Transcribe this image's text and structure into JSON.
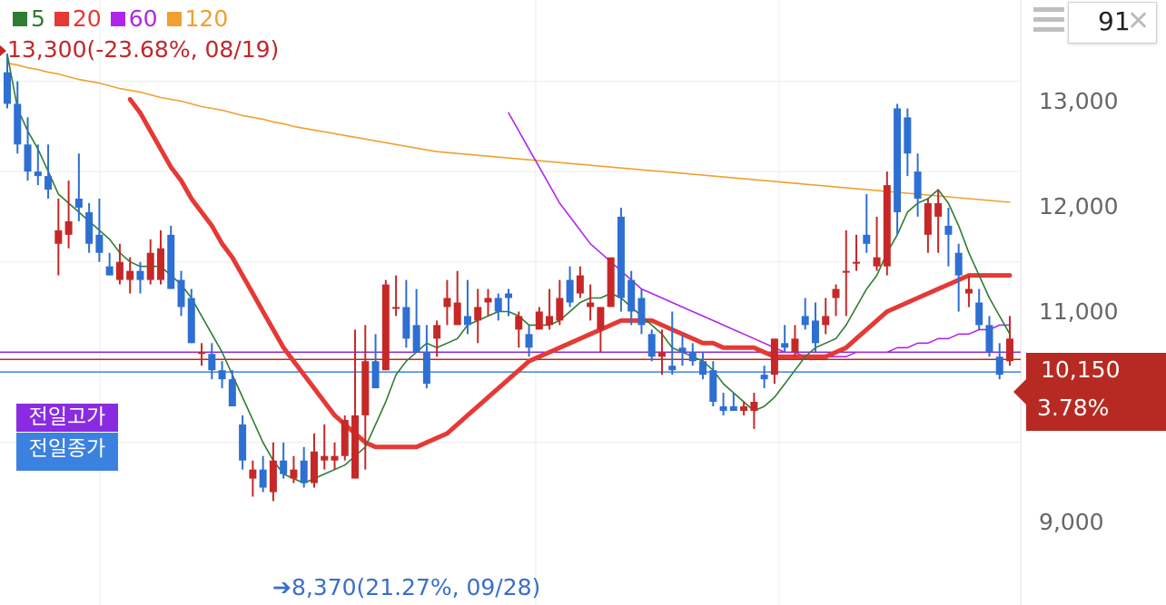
{
  "chart_data": {
    "type": "candlestick",
    "legend": [
      {
        "label": "5",
        "color": "#2e7d32"
      },
      {
        "label": "20",
        "color": "#e53935"
      },
      {
        "label": "60",
        "color": "#b026e8"
      },
      {
        "label": "120",
        "color": "#f0a030"
      }
    ],
    "yticks": [
      "13,000",
      "12,000",
      "11,000",
      "9,000"
    ],
    "ytick_values": [
      13000,
      12000,
      11000,
      9000
    ],
    "ylim": [
      7200,
      13900
    ],
    "grid": true,
    "high_marker": "13,300(-23.68%, 08/19)",
    "low_marker": "8,370(21.27%, 09/28)",
    "prev_high_label": "전일고가",
    "prev_close_label": "전일종가",
    "prev_high_value": 10000,
    "prev_close_value": 9780,
    "prev_mid_value": 9920,
    "current_price": "10,150",
    "current_change": "3.78%",
    "candles": [
      [
        13100,
        13300,
        12700,
        12750
      ],
      [
        12750,
        13000,
        12200,
        12300
      ],
      [
        12300,
        12600,
        11900,
        12000
      ],
      [
        12000,
        12300,
        11850,
        11950
      ],
      [
        11950,
        12300,
        11700,
        11800
      ],
      [
        11200,
        11700,
        10850,
        11350
      ],
      [
        11300,
        11900,
        11150,
        11450
      ],
      [
        11700,
        12200,
        11450,
        11600
      ],
      [
        11550,
        11650,
        11100,
        11200
      ],
      [
        11300,
        11700,
        11000,
        11100
      ],
      [
        10950,
        11100,
        10850,
        10850
      ],
      [
        10800,
        11200,
        10750,
        11000
      ],
      [
        10800,
        11050,
        10650,
        10900
      ],
      [
        10900,
        11000,
        10650,
        10800
      ],
      [
        10800,
        11250,
        10750,
        11100
      ],
      [
        10800,
        11350,
        10750,
        11150
      ],
      [
        11300,
        11400,
        10700,
        10700
      ],
      [
        10800,
        10900,
        10400,
        10500
      ],
      [
        10600,
        10700,
        10100,
        10100
      ],
      [
        10000,
        10100,
        9850,
        10000
      ],
      [
        9980,
        10100,
        9700,
        9800
      ],
      [
        9800,
        9900,
        9600,
        9700
      ],
      [
        9700,
        9800,
        9400,
        9400
      ],
      [
        9200,
        9300,
        8700,
        8800
      ],
      [
        8600,
        8800,
        8400,
        8700
      ],
      [
        8700,
        8850,
        8450,
        8500
      ],
      [
        8450,
        9000,
        8350,
        8800
      ],
      [
        8800,
        9000,
        8600,
        8650
      ],
      [
        8600,
        8850,
        8550,
        8700
      ],
      [
        8800,
        8950,
        8500,
        8550
      ],
      [
        8550,
        9100,
        8500,
        8900
      ],
      [
        8800,
        9200,
        8700,
        8850
      ],
      [
        8800,
        9000,
        8700,
        8850
      ],
      [
        8850,
        9300,
        8800,
        9250
      ],
      [
        8600,
        10250,
        8600,
        9300
      ],
      [
        9300,
        10300,
        8700,
        9900
      ],
      [
        9900,
        10200,
        9600,
        9600
      ],
      [
        9800,
        10800,
        9800,
        10750
      ],
      [
        10500,
        10850,
        10400,
        10500
      ],
      [
        10500,
        10800,
        10050,
        10150
      ],
      [
        10300,
        10700,
        10000,
        10000
      ],
      [
        10000,
        10300,
        9600,
        9650
      ],
      [
        10150,
        10350,
        9950,
        10300
      ],
      [
        10500,
        10800,
        10300,
        10600
      ],
      [
        10300,
        10900,
        10300,
        10550
      ],
      [
        10400,
        10800,
        10200,
        10300
      ],
      [
        10350,
        10700,
        10100,
        10500
      ],
      [
        10550,
        10700,
        10400,
        10600
      ],
      [
        10600,
        10650,
        10350,
        10450
      ],
      [
        10650,
        10700,
        10400,
        10600
      ],
      [
        10250,
        10450,
        10050,
        10400
      ],
      [
        10200,
        10300,
        9950,
        10050
      ],
      [
        10250,
        10500,
        10250,
        10450
      ],
      [
        10300,
        10700,
        10250,
        10400
      ],
      [
        10350,
        10800,
        10300,
        10600
      ],
      [
        10800,
        10950,
        10500,
        10550
      ],
      [
        10650,
        10950,
        10600,
        10850
      ],
      [
        10500,
        10750,
        10350,
        10550
      ],
      [
        10250,
        10500,
        10000,
        10500
      ],
      [
        10500,
        11000,
        10500,
        11050
      ],
      [
        11500,
        11600,
        10450,
        10600
      ],
      [
        10800,
        10900,
        10300,
        10450
      ],
      [
        10600,
        10700,
        10200,
        10300
      ],
      [
        10200,
        10250,
        9900,
        9950
      ],
      [
        9950,
        10250,
        9750,
        10000
      ],
      [
        9850,
        10450,
        9750,
        9800
      ],
      [
        10050,
        10200,
        9850,
        10000
      ],
      [
        10000,
        10100,
        9850,
        9900
      ],
      [
        9900,
        10000,
        9700,
        9750
      ],
      [
        9800,
        9900,
        9400,
        9450
      ],
      [
        9400,
        9550,
        9300,
        9350
      ],
      [
        9400,
        9550,
        9350,
        9350
      ],
      [
        9350,
        9450,
        9300,
        9400
      ],
      [
        9350,
        9550,
        9150,
        9450
      ],
      [
        9750,
        9850,
        9600,
        9700
      ],
      [
        9750,
        10150,
        9650,
        10150
      ],
      [
        10100,
        10300,
        10000,
        10050
      ],
      [
        10000,
        10300,
        9950,
        10150
      ],
      [
        10400,
        10600,
        10250,
        10300
      ],
      [
        10350,
        10550,
        10000,
        10100
      ],
      [
        10300,
        10600,
        10200,
        10400
      ],
      [
        10600,
        10750,
        10400,
        10700
      ],
      [
        10900,
        11350,
        10400,
        10900
      ],
      [
        11000,
        11300,
        10900,
        11000
      ],
      [
        11300,
        11750,
        11100,
        11200
      ],
      [
        10950,
        11500,
        10900,
        11050
      ],
      [
        10950,
        12000,
        10850,
        11850
      ],
      [
        12700,
        12750,
        11300,
        11550
      ],
      [
        12600,
        12700,
        11950,
        12200
      ],
      [
        12000,
        12200,
        11500,
        11700
      ],
      [
        11300,
        11700,
        11100,
        11650
      ],
      [
        11500,
        11800,
        11100,
        11650
      ],
      [
        11400,
        11600,
        10950,
        11300
      ],
      [
        11100,
        11200,
        10450,
        10850
      ],
      [
        10650,
        10850,
        10500,
        10700
      ],
      [
        10550,
        10700,
        10250,
        10300
      ],
      [
        10300,
        10400,
        9950,
        10000
      ],
      [
        9950,
        10100,
        9700,
        9750
      ],
      [
        9900,
        10400,
        9850,
        10150
      ]
    ],
    "ma5": [
      13300,
      12700,
      12450,
      12250,
      12000,
      11750,
      11650,
      11550,
      11450,
      11350,
      11250,
      11100,
      11000,
      10950,
      10950,
      10950,
      10850,
      10750,
      10600,
      10400,
      10200,
      10000,
      9750,
      9500,
      9250,
      9000,
      8800,
      8650,
      8600,
      8550,
      8600,
      8650,
      8700,
      8750,
      8850,
      8950,
      9200,
      9450,
      9750,
      9900,
      10000,
      10100,
      10050,
      10100,
      10150,
      10300,
      10350,
      10400,
      10450,
      10450,
      10400,
      10300,
      10300,
      10300,
      10350,
      10450,
      10550,
      10600,
      10600,
      10650,
      10600,
      10500,
      10400,
      10300,
      10200,
      10050,
      10000,
      9950,
      9900,
      9800,
      9650,
      9550,
      9450,
      9350,
      9400,
      9500,
      9650,
      9800,
      9950,
      10050,
      10100,
      10150,
      10300,
      10500,
      10700,
      10850,
      11100,
      11300,
      11550,
      11650,
      11700,
      11800,
      11650,
      11400,
      11100,
      10850,
      10600,
      10400,
      10200
    ],
    "ma20": [
      null,
      null,
      null,
      null,
      null,
      null,
      null,
      null,
      null,
      null,
      null,
      null,
      12800,
      12650,
      12450,
      12250,
      12050,
      11900,
      11700,
      11550,
      11400,
      11200,
      11050,
      10850,
      10650,
      10450,
      10250,
      10050,
      9900,
      9750,
      9600,
      9450,
      9300,
      9200,
      9100,
      9000,
      8950,
      8950,
      8950,
      8950,
      8950,
      9000,
      9050,
      9100,
      9200,
      9300,
      9400,
      9500,
      9600,
      9700,
      9800,
      9900,
      9950,
      10000,
      10050,
      10100,
      10150,
      10200,
      10250,
      10300,
      10350,
      10350,
      10350,
      10350,
      10300,
      10250,
      10200,
      10150,
      10100,
      10100,
      10050,
      10050,
      10050,
      10050,
      10000,
      9950,
      9950,
      9950,
      9950,
      9950,
      9950,
      10000,
      10050,
      10150,
      10250,
      10350,
      10450,
      10500,
      10550,
      10600,
      10650,
      10700,
      10750,
      10800,
      10850,
      10850,
      10850,
      10850,
      10850
    ],
    "ma60": [
      null,
      null,
      null,
      null,
      null,
      null,
      null,
      null,
      null,
      null,
      null,
      null,
      null,
      null,
      null,
      null,
      null,
      null,
      null,
      null,
      null,
      null,
      null,
      null,
      null,
      null,
      null,
      null,
      null,
      null,
      null,
      null,
      null,
      null,
      null,
      null,
      null,
      null,
      null,
      null,
      null,
      null,
      null,
      null,
      null,
      null,
      null,
      null,
      null,
      12650,
      12450,
      12250,
      12050,
      11850,
      11650,
      11500,
      11350,
      11200,
      11100,
      11000,
      10900,
      10800,
      10700,
      10650,
      10600,
      10550,
      10500,
      10450,
      10400,
      10350,
      10300,
      10250,
      10200,
      10150,
      10100,
      10050,
      10000,
      10000,
      9950,
      9950,
      9950,
      9950,
      9950,
      10000,
      10000,
      10000,
      10000,
      10050,
      10050,
      10100,
      10100,
      10150,
      10150,
      10200,
      10200,
      10250,
      10250,
      10300,
      10300
    ],
    "ma120": [
      13200,
      13180,
      13150,
      13130,
      13100,
      13080,
      13050,
      13020,
      13000,
      12980,
      12950,
      12920,
      12900,
      12880,
      12850,
      12820,
      12800,
      12780,
      12750,
      12720,
      12700,
      12680,
      12650,
      12620,
      12600,
      12580,
      12550,
      12530,
      12500,
      12480,
      12460,
      12440,
      12420,
      12400,
      12380,
      12360,
      12340,
      12320,
      12300,
      12280,
      12260,
      12240,
      12220,
      12210,
      12200,
      12190,
      12180,
      12170,
      12160,
      12150,
      12140,
      12130,
      12120,
      12110,
      12100,
      12090,
      12080,
      12070,
      12060,
      12050,
      12040,
      12030,
      12020,
      12010,
      12000,
      11990,
      11980,
      11970,
      11960,
      11950,
      11940,
      11930,
      11920,
      11910,
      11900,
      11890,
      11880,
      11870,
      11860,
      11850,
      11840,
      11830,
      11820,
      11810,
      11800,
      11790,
      11780,
      11770,
      11760,
      11750,
      11740,
      11730,
      11720,
      11710,
      11700,
      11690,
      11680,
      11670,
      11660
    ]
  },
  "header": {
    "count": "91"
  }
}
